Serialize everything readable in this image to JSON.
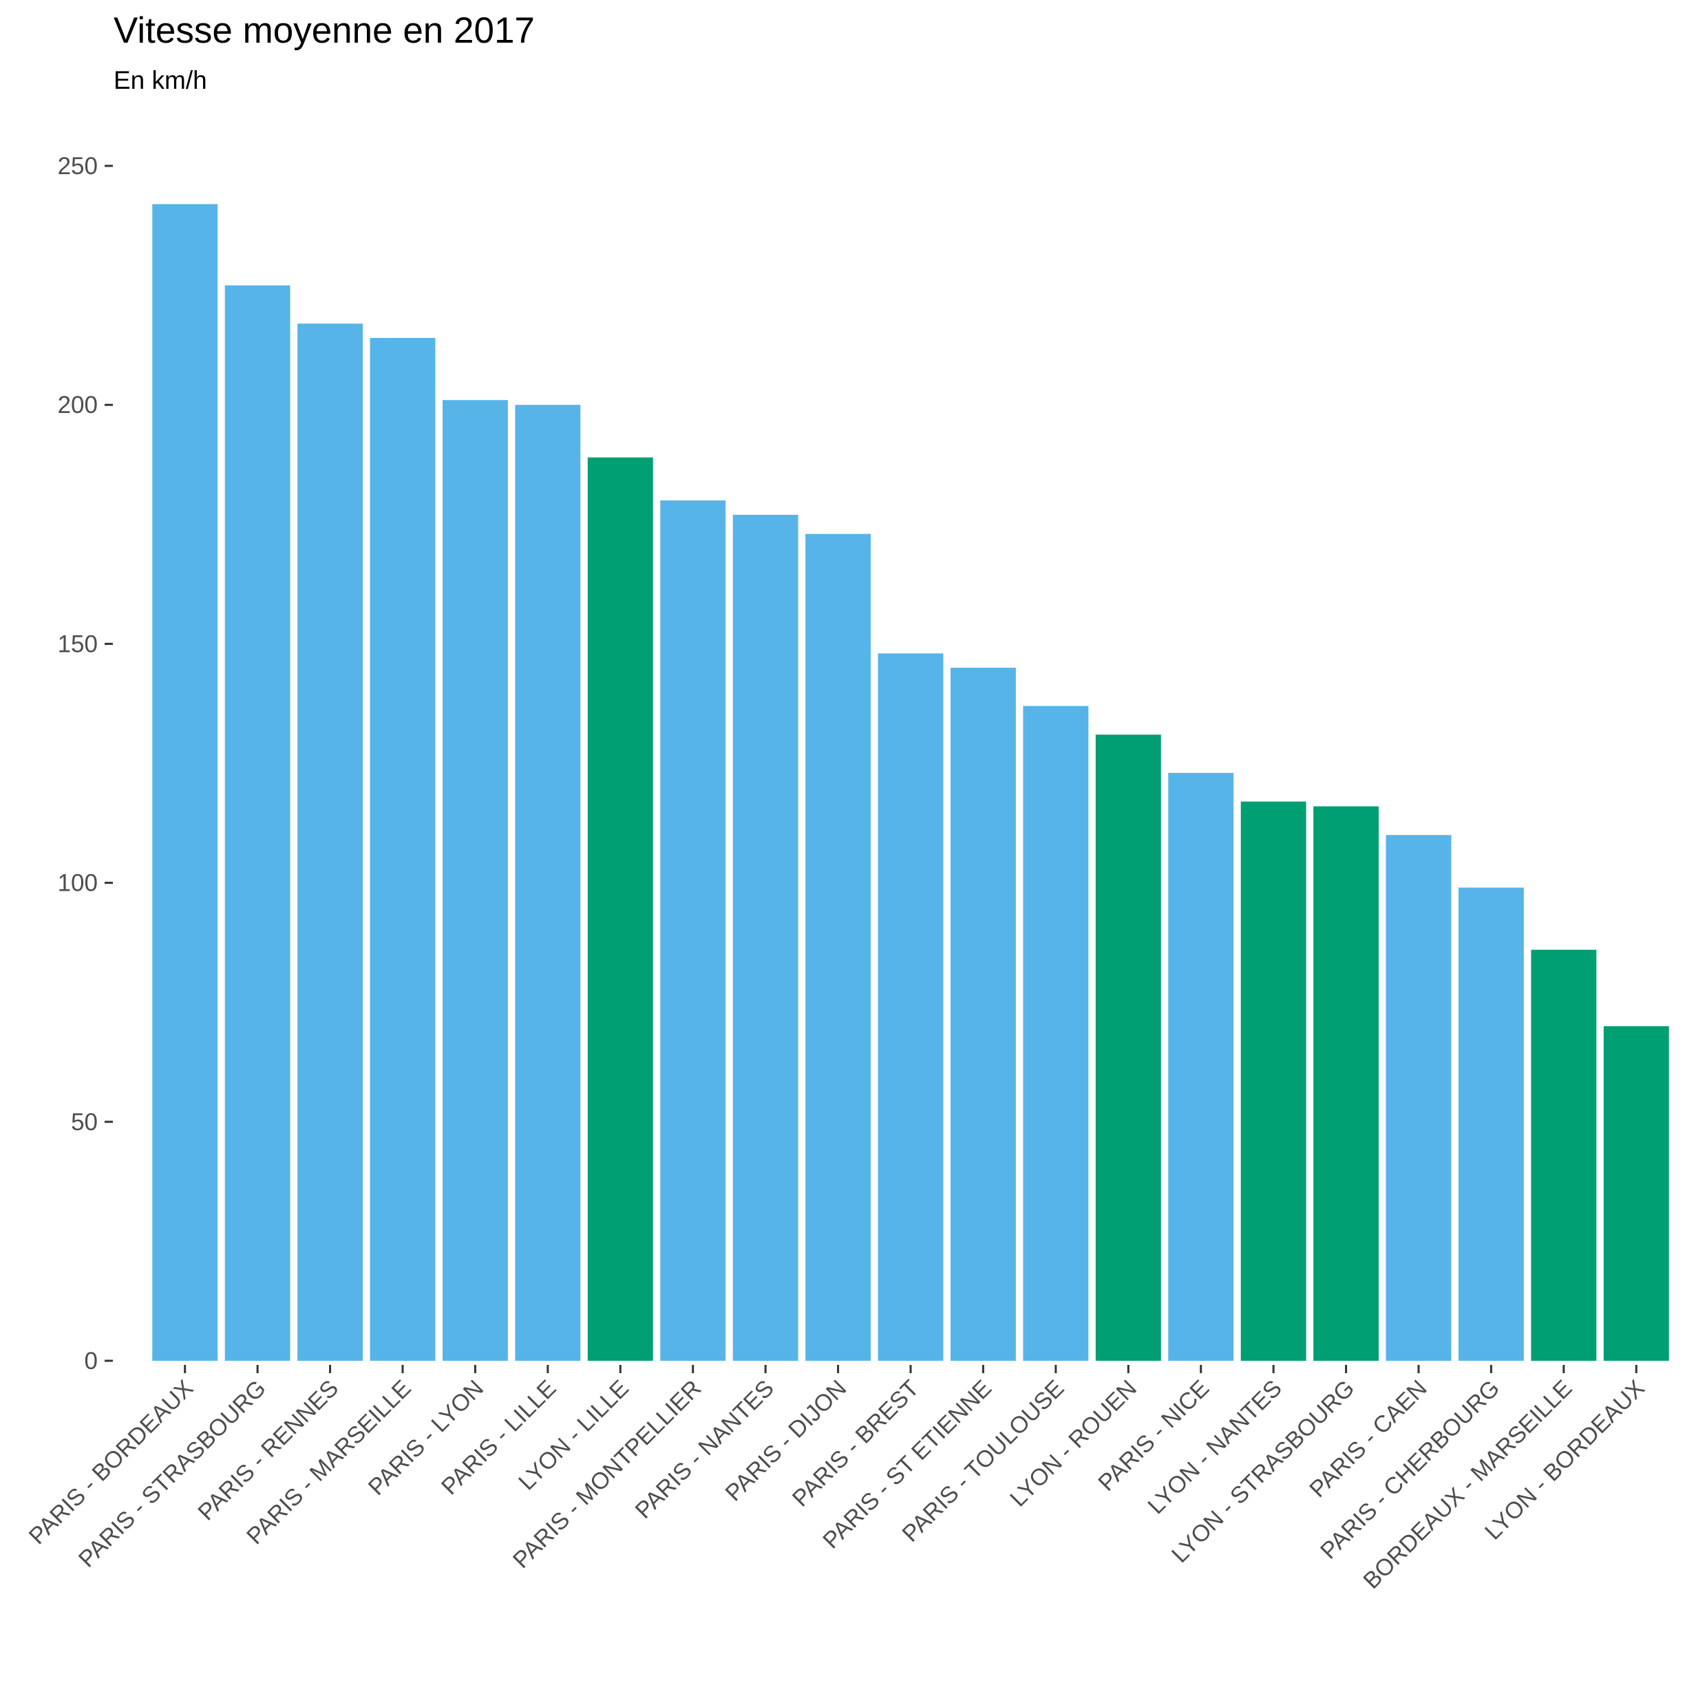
{
  "chart_data": {
    "type": "bar",
    "title": "Vitesse moyenne en 2017",
    "subtitle": "En km/h",
    "xlabel": "",
    "ylabel": "",
    "ylim": [
      0,
      250
    ],
    "yticks": [
      0,
      50,
      100,
      150,
      200,
      250
    ],
    "grid": false,
    "legend": "none",
    "colors": {
      "paris": "#56b4e9",
      "other": "#009e73",
      "tick_label": "#4d4d4d",
      "tick_mark": "#333333"
    },
    "categories": [
      "PARIS - BORDEAUX",
      "PARIS - STRASBOURG",
      "PARIS - RENNES",
      "PARIS - MARSEILLE",
      "PARIS - LYON",
      "PARIS - LILLE",
      "LYON - LILLE",
      "PARIS - MONTPELLIER",
      "PARIS - NANTES",
      "PARIS - DIJON",
      "PARIS - BREST",
      "PARIS - ST ETIENNE",
      "PARIS - TOULOUSE",
      "LYON - ROUEN",
      "PARIS - NICE",
      "LYON - NANTES",
      "LYON - STRASBOURG",
      "PARIS - CAEN",
      "PARIS - CHERBOURG",
      "BORDEAUX - MARSEILLE",
      "LYON - BORDEAUX"
    ],
    "values": [
      242,
      225,
      217,
      214,
      201,
      200,
      189,
      180,
      177,
      173,
      148,
      145,
      137,
      131,
      123,
      117,
      116,
      110,
      99,
      86,
      70
    ],
    "groups": [
      "paris",
      "paris",
      "paris",
      "paris",
      "paris",
      "paris",
      "other",
      "paris",
      "paris",
      "paris",
      "paris",
      "paris",
      "paris",
      "other",
      "paris",
      "other",
      "other",
      "paris",
      "paris",
      "other",
      "other"
    ]
  }
}
